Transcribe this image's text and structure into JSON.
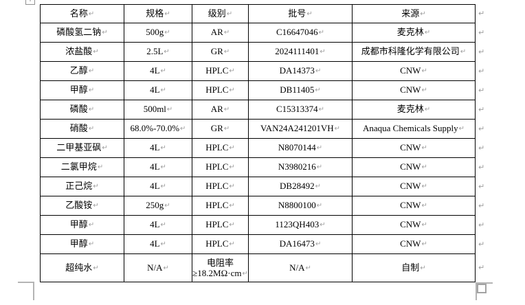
{
  "colors": {
    "table_border": "#000000",
    "text": "#000000",
    "formatting_mark": "#9d9d9d",
    "crop_mark": "#b4b4b4",
    "handle_gray": "#a3a3a3"
  },
  "marks": {
    "end_of_cell": "↵",
    "end_of_row": "↵",
    "move_handle_cross": "+"
  },
  "table": {
    "headers": [
      "名称",
      "规格",
      "级别",
      "批号",
      "来源"
    ],
    "rows": [
      [
        "磷酸氢二钠",
        "500g",
        "AR",
        "C16647046",
        "麦克林"
      ],
      [
        "浓盐酸",
        "2.5L",
        "GR",
        "2024111401",
        "成都市科隆化学有限公司"
      ],
      [
        "乙醇",
        "4L",
        "HPLC",
        "DA14373",
        "CNW"
      ],
      [
        "甲醇",
        "4L",
        "HPLC",
        "DB11405",
        "CNW"
      ],
      [
        "磷酸",
        "500ml",
        "AR",
        "C15313374",
        "麦克林"
      ],
      [
        "硝酸",
        "68.0%-70.0%",
        "GR",
        "VAN24A241201VH",
        "Anaqua Chemicals Supply"
      ],
      [
        "二甲基亚砜",
        "4L",
        "HPLC",
        "N8070144",
        "CNW"
      ],
      [
        "二氯甲烷",
        "4L",
        "HPLC",
        "N3980216",
        "CNW"
      ],
      [
        "正己烷",
        "4L",
        "HPLC",
        "DB28492",
        "CNW"
      ],
      [
        "乙酸铵",
        "250g",
        "HPLC",
        "N8800100",
        "CNW"
      ],
      [
        "甲醇",
        "4L",
        "HPLC",
        "1123QH403",
        "CNW"
      ],
      [
        "甲醇",
        "4L",
        "HPLC",
        "DA16473",
        "CNW"
      ],
      [
        "超纯水",
        "N/A",
        [
          "电阻率",
          "≥18.2MΩ·cm"
        ],
        "N/A",
        "自制"
      ]
    ]
  }
}
